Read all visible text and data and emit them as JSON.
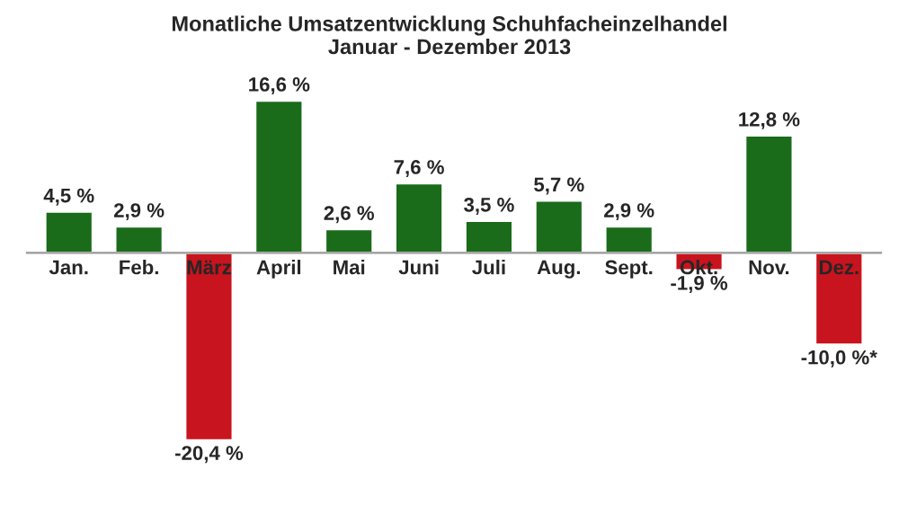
{
  "chart_data": {
    "type": "bar",
    "title": "Monatliche Umsatzentwicklung Schuhfacheinzelhandel\nJanuar - Dezember 2013",
    "categories": [
      "Jan.",
      "Feb.",
      "März",
      "April",
      "Mai",
      "Juni",
      "Juli",
      "Aug.",
      "Sept.",
      "Okt.",
      "Nov.",
      "Dez."
    ],
    "values": [
      4.5,
      2.9,
      -20.4,
      16.6,
      2.6,
      7.6,
      3.5,
      5.7,
      2.9,
      -1.9,
      12.8,
      -10.0
    ],
    "value_labels": [
      "4,5 %",
      "2,9 %",
      "-20,4 %",
      "16,6 %",
      "2,6 %",
      "7,6 %",
      "3,5 %",
      "5,7 %",
      "2,9 %",
      "-1,9 %",
      "12,8 %",
      "-10,0 %*"
    ],
    "colors": [
      "#1a6b1a",
      "#1a6b1a",
      "#c8141e",
      "#1a6b1a",
      "#1a6b1a",
      "#1a6b1a",
      "#1a6b1a",
      "#1a6b1a",
      "#1a6b1a",
      "#c8141e",
      "#1a6b1a",
      "#c8141e"
    ]
  }
}
